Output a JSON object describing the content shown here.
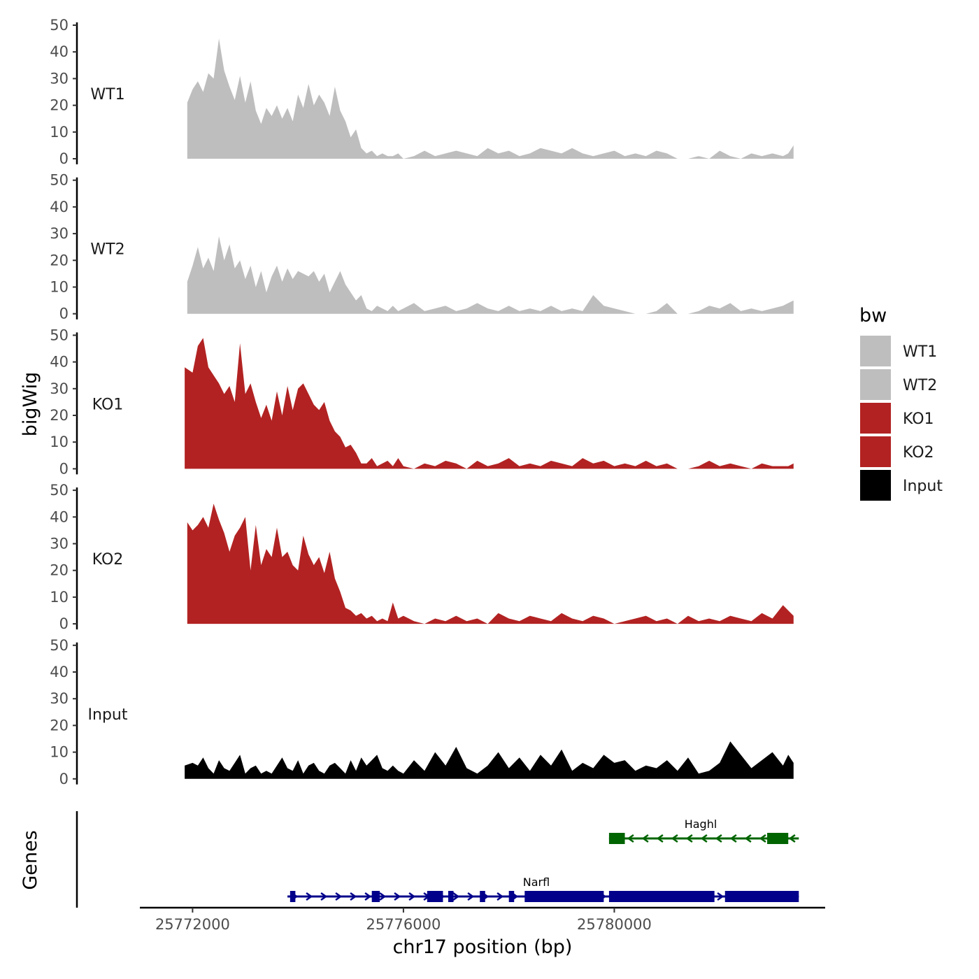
{
  "chart_data": {
    "type": "area",
    "title": "",
    "ylabel": "bigWig",
    "genes_label": "Genes",
    "xlabel": "chr17 position (bp)",
    "chromosome": "chr17",
    "xlim": [
      25771000,
      25784000
    ],
    "x_ticks": [
      25772000,
      25776000,
      25780000
    ],
    "x_tick_labels": [
      "25772000",
      "25776000",
      "25780000"
    ],
    "ylim": [
      0,
      50
    ],
    "y_ticks": [
      0,
      10,
      20,
      30,
      40,
      50
    ],
    "y_tick_labels": [
      "0",
      "10",
      "20",
      "30",
      "40",
      "50"
    ],
    "legend": {
      "title": "bw",
      "position": "right",
      "entries": [
        {
          "label": "WT1",
          "color": "#BEBEBE"
        },
        {
          "label": "WT2",
          "color": "#BEBEBE"
        },
        {
          "label": "KO1",
          "color": "#B22222"
        },
        {
          "label": "KO2",
          "color": "#B22222"
        },
        {
          "label": "Input",
          "color": "#000000"
        }
      ]
    },
    "series": [
      {
        "name": "WT1",
        "color": "#BEBEBE",
        "x": [
          25771900,
          25772000,
          25772100,
          25772200,
          25772300,
          25772400,
          25772500,
          25772600,
          25772700,
          25772800,
          25772900,
          25773000,
          25773100,
          25773200,
          25773300,
          25773400,
          25773500,
          25773600,
          25773700,
          25773800,
          25773900,
          25774000,
          25774100,
          25774200,
          25774300,
          25774400,
          25774500,
          25774600,
          25774700,
          25774800,
          25774900,
          25775000,
          25775100,
          25775200,
          25775300,
          25775400,
          25775500,
          25775600,
          25775700,
          25775800,
          25775900,
          25776000,
          25776200,
          25776400,
          25776600,
          25776800,
          25777000,
          25777200,
          25777400,
          25777600,
          25777800,
          25778000,
          25778200,
          25778400,
          25778600,
          25778800,
          25779000,
          25779200,
          25779400,
          25779600,
          25779800,
          25780000,
          25780200,
          25780400,
          25780600,
          25780800,
          25781000,
          25781200,
          25781400,
          25781600,
          25781800,
          25782000,
          25782200,
          25782400,
          25782600,
          25782800,
          25783000,
          25783200,
          25783300,
          25783400
        ],
        "y": [
          21,
          26,
          29,
          25,
          32,
          30,
          45,
          33,
          27,
          22,
          31,
          21,
          29,
          18,
          13,
          19,
          16,
          20,
          15,
          19,
          14,
          24,
          19,
          28,
          20,
          24,
          21,
          16,
          27,
          18,
          14,
          8,
          11,
          4,
          2,
          3,
          1,
          2,
          1,
          1,
          2,
          0,
          1,
          3,
          1,
          2,
          3,
          2,
          1,
          4,
          2,
          3,
          1,
          2,
          4,
          3,
          2,
          4,
          2,
          1,
          2,
          3,
          1,
          2,
          1,
          3,
          2,
          0,
          0,
          1,
          0,
          3,
          1,
          0,
          2,
          1,
          2,
          1,
          2,
          5
        ]
      },
      {
        "name": "WT2",
        "color": "#BEBEBE",
        "x": [
          25771900,
          25772000,
          25772100,
          25772200,
          25772300,
          25772400,
          25772500,
          25772600,
          25772700,
          25772800,
          25772900,
          25773000,
          25773100,
          25773200,
          25773300,
          25773400,
          25773500,
          25773600,
          25773700,
          25773800,
          25773900,
          25774000,
          25774100,
          25774200,
          25774300,
          25774400,
          25774500,
          25774600,
          25774700,
          25774800,
          25774900,
          25775000,
          25775100,
          25775200,
          25775300,
          25775400,
          25775500,
          25775600,
          25775700,
          25775800,
          25775900,
          25776000,
          25776200,
          25776400,
          25776600,
          25776800,
          25777000,
          25777200,
          25777400,
          25777600,
          25777800,
          25778000,
          25778200,
          25778400,
          25778600,
          25778800,
          25779000,
          25779200,
          25779400,
          25779600,
          25779800,
          25780000,
          25780200,
          25780400,
          25780600,
          25780800,
          25781000,
          25781200,
          25781400,
          25781600,
          25781800,
          25782000,
          25782200,
          25782400,
          25782600,
          25782800,
          25783000,
          25783200,
          25783300,
          25783400
        ],
        "y": [
          12,
          18,
          25,
          17,
          21,
          16,
          29,
          20,
          26,
          17,
          20,
          13,
          18,
          10,
          16,
          8,
          14,
          18,
          12,
          17,
          13,
          16,
          15,
          14,
          16,
          12,
          15,
          8,
          12,
          16,
          11,
          8,
          5,
          7,
          2,
          1,
          3,
          2,
          1,
          3,
          1,
          2,
          4,
          1,
          2,
          3,
          1,
          2,
          4,
          2,
          1,
          3,
          1,
          2,
          1,
          3,
          1,
          2,
          1,
          7,
          3,
          2,
          1,
          0,
          0,
          1,
          4,
          0,
          0,
          1,
          3,
          2,
          4,
          1,
          2,
          1,
          2,
          3,
          4,
          5
        ]
      },
      {
        "name": "KO1",
        "color": "#B22222",
        "x": [
          25771850,
          25772000,
          25772100,
          25772200,
          25772300,
          25772400,
          25772500,
          25772600,
          25772700,
          25772800,
          25772900,
          25773000,
          25773100,
          25773200,
          25773300,
          25773400,
          25773500,
          25773600,
          25773700,
          25773800,
          25773900,
          25774000,
          25774100,
          25774200,
          25774300,
          25774400,
          25774500,
          25774600,
          25774700,
          25774800,
          25774900,
          25775000,
          25775100,
          25775200,
          25775300,
          25775400,
          25775500,
          25775600,
          25775700,
          25775800,
          25775900,
          25776000,
          25776200,
          25776400,
          25776600,
          25776800,
          25777000,
          25777200,
          25777400,
          25777600,
          25777800,
          25778000,
          25778200,
          25778400,
          25778600,
          25778800,
          25779000,
          25779200,
          25779400,
          25779600,
          25779800,
          25780000,
          25780200,
          25780400,
          25780600,
          25780800,
          25781000,
          25781200,
          25781400,
          25781600,
          25781800,
          25782000,
          25782200,
          25782400,
          25782600,
          25782800,
          25783000,
          25783200,
          25783300,
          25783400
        ],
        "y": [
          38,
          36,
          46,
          49,
          38,
          35,
          32,
          28,
          31,
          25,
          47,
          28,
          32,
          25,
          19,
          24,
          18,
          29,
          20,
          31,
          22,
          30,
          32,
          28,
          24,
          22,
          25,
          18,
          14,
          12,
          8,
          9,
          6,
          2,
          2,
          4,
          1,
          2,
          3,
          1,
          4,
          1,
          0,
          2,
          1,
          3,
          2,
          0,
          3,
          1,
          2,
          4,
          1,
          2,
          1,
          3,
          2,
          1,
          4,
          2,
          3,
          1,
          2,
          1,
          3,
          1,
          2,
          0,
          0,
          1,
          3,
          1,
          2,
          1,
          0,
          2,
          1,
          1,
          1,
          2
        ]
      },
      {
        "name": "KO2",
        "color": "#B22222",
        "x": [
          25771900,
          25772000,
          25772100,
          25772200,
          25772300,
          25772400,
          25772500,
          25772600,
          25772700,
          25772800,
          25772900,
          25773000,
          25773100,
          25773200,
          25773300,
          25773400,
          25773500,
          25773600,
          25773700,
          25773800,
          25773900,
          25774000,
          25774100,
          25774200,
          25774300,
          25774400,
          25774500,
          25774600,
          25774700,
          25774800,
          25774900,
          25775000,
          25775100,
          25775200,
          25775300,
          25775400,
          25775500,
          25775600,
          25775700,
          25775800,
          25775900,
          25776000,
          25776200,
          25776400,
          25776600,
          25776800,
          25777000,
          25777200,
          25777400,
          25777600,
          25777800,
          25778000,
          25778200,
          25778400,
          25778600,
          25778800,
          25779000,
          25779200,
          25779400,
          25779600,
          25779800,
          25780000,
          25780200,
          25780400,
          25780600,
          25780800,
          25781000,
          25781200,
          25781400,
          25781600,
          25781800,
          25782000,
          25782200,
          25782400,
          25782600,
          25782800,
          25783000,
          25783200,
          25783300,
          25783400
        ],
        "y": [
          38,
          35,
          37,
          40,
          36,
          45,
          39,
          34,
          27,
          33,
          36,
          40,
          20,
          37,
          22,
          28,
          25,
          36,
          25,
          27,
          22,
          20,
          33,
          26,
          22,
          25,
          19,
          27,
          17,
          12,
          6,
          5,
          3,
          4,
          2,
          3,
          1,
          2,
          1,
          8,
          2,
          3,
          1,
          0,
          2,
          1,
          3,
          1,
          2,
          0,
          4,
          2,
          1,
          3,
          2,
          1,
          4,
          2,
          1,
          3,
          2,
          0,
          1,
          2,
          3,
          1,
          2,
          0,
          3,
          1,
          2,
          1,
          3,
          2,
          1,
          4,
          2,
          7,
          5,
          3
        ]
      },
      {
        "name": "Input",
        "color": "#000000",
        "x": [
          25771850,
          25772000,
          25772100,
          25772200,
          25772300,
          25772400,
          25772500,
          25772600,
          25772700,
          25772800,
          25772900,
          25773000,
          25773100,
          25773200,
          25773300,
          25773400,
          25773500,
          25773600,
          25773700,
          25773800,
          25773900,
          25774000,
          25774100,
          25774200,
          25774300,
          25774400,
          25774500,
          25774600,
          25774700,
          25774800,
          25774900,
          25775000,
          25775100,
          25775200,
          25775300,
          25775400,
          25775500,
          25775600,
          25775700,
          25775800,
          25775900,
          25776000,
          25776200,
          25776400,
          25776600,
          25776800,
          25777000,
          25777200,
          25777400,
          25777600,
          25777800,
          25778000,
          25778200,
          25778400,
          25778600,
          25778800,
          25779000,
          25779200,
          25779400,
          25779600,
          25779800,
          25780000,
          25780200,
          25780400,
          25780600,
          25780800,
          25781000,
          25781200,
          25781400,
          25781600,
          25781800,
          25782000,
          25782200,
          25782400,
          25782600,
          25782800,
          25783000,
          25783200,
          25783300,
          25783400
        ],
        "y": [
          5,
          6,
          5,
          8,
          4,
          2,
          7,
          4,
          3,
          6,
          9,
          2,
          4,
          5,
          2,
          3,
          2,
          5,
          8,
          4,
          3,
          7,
          2,
          5,
          6,
          3,
          2,
          5,
          6,
          4,
          2,
          7,
          3,
          8,
          5,
          7,
          9,
          4,
          3,
          5,
          3,
          2,
          7,
          3,
          10,
          5,
          12,
          4,
          2,
          5,
          10,
          4,
          8,
          3,
          9,
          5,
          11,
          3,
          6,
          4,
          9,
          6,
          7,
          3,
          5,
          4,
          7,
          3,
          8,
          2,
          3,
          6,
          14,
          9,
          4,
          7,
          10,
          5,
          9,
          6
        ]
      }
    ],
    "gene_track": {
      "genes": [
        {
          "name": "Haghl",
          "strand": "-",
          "color": "#006400",
          "start": 25779900,
          "end": 25783500,
          "exons": [
            [
              25779900,
              25780200
            ],
            [
              25782900,
              25783300
            ]
          ]
        },
        {
          "name": "Narfl",
          "strand": "+",
          "color": "#00008B",
          "start": 25773800,
          "end": 25783500,
          "exons": [
            [
              25773850,
              25773950
            ],
            [
              25775400,
              25775550
            ],
            [
              25776450,
              25776750
            ],
            [
              25776850,
              25776950
            ],
            [
              25777450,
              25777550
            ],
            [
              25778000,
              25778100
            ],
            [
              25778300,
              25779800
            ],
            [
              25779900,
              25781900
            ],
            [
              25782100,
              25783500
            ]
          ]
        }
      ]
    }
  }
}
